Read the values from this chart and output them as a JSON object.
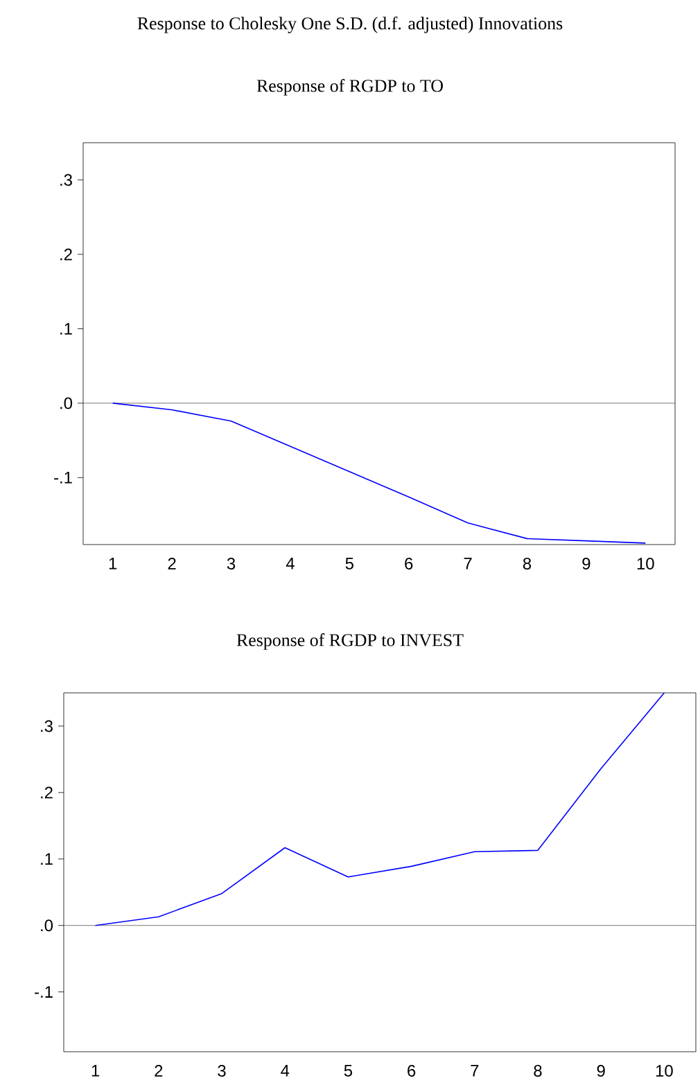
{
  "chart_data": [
    {
      "type": "line",
      "title": "Response to Cholesky One S.D. (d.f. adjusted) Innovations",
      "subtitle": "Response of RGDP to TO",
      "categories": [
        "1",
        "2",
        "3",
        "4",
        "5",
        "6",
        "7",
        "8",
        "9",
        "10"
      ],
      "series": [
        {
          "color": "#0000ff",
          "values": [
            0.0,
            -0.009,
            -0.024,
            -0.058,
            -0.092,
            -0.126,
            -0.161,
            -0.182,
            -0.185,
            -0.188
          ]
        }
      ],
      "ylim": [
        -0.19,
        0.35
      ],
      "yticks": [
        {
          "value": -0.1,
          "label": "-.1"
        },
        {
          "value": 0.0,
          "label": ".0"
        },
        {
          "value": 0.1,
          "label": ".1"
        },
        {
          "value": 0.2,
          "label": ".2"
        },
        {
          "value": 0.3,
          "label": ".3"
        }
      ],
      "ref_lines": [
        {
          "axis": "y",
          "value": 0,
          "color": "#555555"
        }
      ],
      "grid": false,
      "marker": "none",
      "line_style": "solid"
    },
    {
      "type": "line",
      "title": "Response of RGDP to INVEST",
      "categories": [
        "1",
        "2",
        "3",
        "4",
        "5",
        "6",
        "7",
        "8",
        "9",
        "10"
      ],
      "series": [
        {
          "color": "#0000ff",
          "values": [
            0.0,
            0.013,
            0.048,
            0.117,
            0.073,
            0.089,
            0.111,
            0.113,
            0.236,
            0.35
          ]
        }
      ],
      "ylim": [
        -0.19,
        0.35
      ],
      "yticks": [
        {
          "value": -0.1,
          "label": "-.1"
        },
        {
          "value": 0.0,
          "label": ".0"
        },
        {
          "value": 0.1,
          "label": ".1"
        },
        {
          "value": 0.2,
          "label": ".2"
        },
        {
          "value": 0.3,
          "label": ".3"
        }
      ],
      "ref_lines": [
        {
          "axis": "y",
          "value": 0,
          "color": "#555555"
        }
      ],
      "grid": false,
      "marker": "none",
      "line_style": "solid"
    }
  ]
}
